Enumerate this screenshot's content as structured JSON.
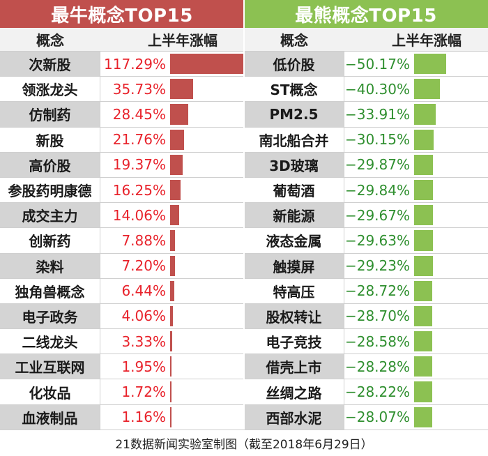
{
  "gain": {
    "title": "最牛概念TOP15",
    "col_name": "概念",
    "col_value": "上半年涨幅",
    "color": "#c0504d",
    "value_color": "#e8222b"
  },
  "loss": {
    "title": "最熊概念TOP15",
    "col_name": "概念",
    "col_value": "上半年涨幅",
    "color": "#8cc152",
    "value_color": "#2f8f2f"
  },
  "footer": "21数据新闻实验室制图（截至2018年6月29日）",
  "chart_data": [
    {
      "type": "bar",
      "title": "最牛概念TOP15",
      "categories": [
        "次新股",
        "领涨龙头",
        "仿制药",
        "新股",
        "高价股",
        "参股药明康德",
        "成交主力",
        "创新药",
        "染料",
        "独角兽概念",
        "电子政务",
        "二线龙头",
        "工业互联网",
        "化妆品",
        "血液制品"
      ],
      "values": [
        117.29,
        35.73,
        28.45,
        21.76,
        19.37,
        16.25,
        14.06,
        7.88,
        7.2,
        6.44,
        4.06,
        3.33,
        1.95,
        1.72,
        1.16
      ],
      "labels": [
        "117.29%",
        "35.73%",
        "28.45%",
        "21.76%",
        "19.37%",
        "16.25%",
        "14.06%",
        "7.88%",
        "7.20%",
        "6.44%",
        "4.06%",
        "3.33%",
        "1.95%",
        "1.72%",
        "1.16%"
      ]
    },
    {
      "type": "bar",
      "title": "最熊概念TOP15",
      "categories": [
        "低价股",
        "ST概念",
        "PM2.5",
        "南北船合并",
        "3D玻璃",
        "葡萄酒",
        "新能源",
        "液态金属",
        "触摸屏",
        "特高压",
        "股权转让",
        "电子竞技",
        "借壳上市",
        "丝绸之路",
        "西部水泥"
      ],
      "values": [
        -50.17,
        -40.3,
        -33.91,
        -30.15,
        -29.87,
        -29.84,
        -29.67,
        -29.63,
        -29.23,
        -28.72,
        -28.7,
        -28.58,
        -28.28,
        -28.22,
        -28.07
      ],
      "labels": [
        "−50.17%",
        "−40.30%",
        "−33.91%",
        "−30.15%",
        "−29.87%",
        "−29.84%",
        "−29.67%",
        "−29.63%",
        "−29.23%",
        "−28.72%",
        "−28.70%",
        "−28.58%",
        "−28.28%",
        "−28.22%",
        "−28.07%"
      ]
    }
  ]
}
